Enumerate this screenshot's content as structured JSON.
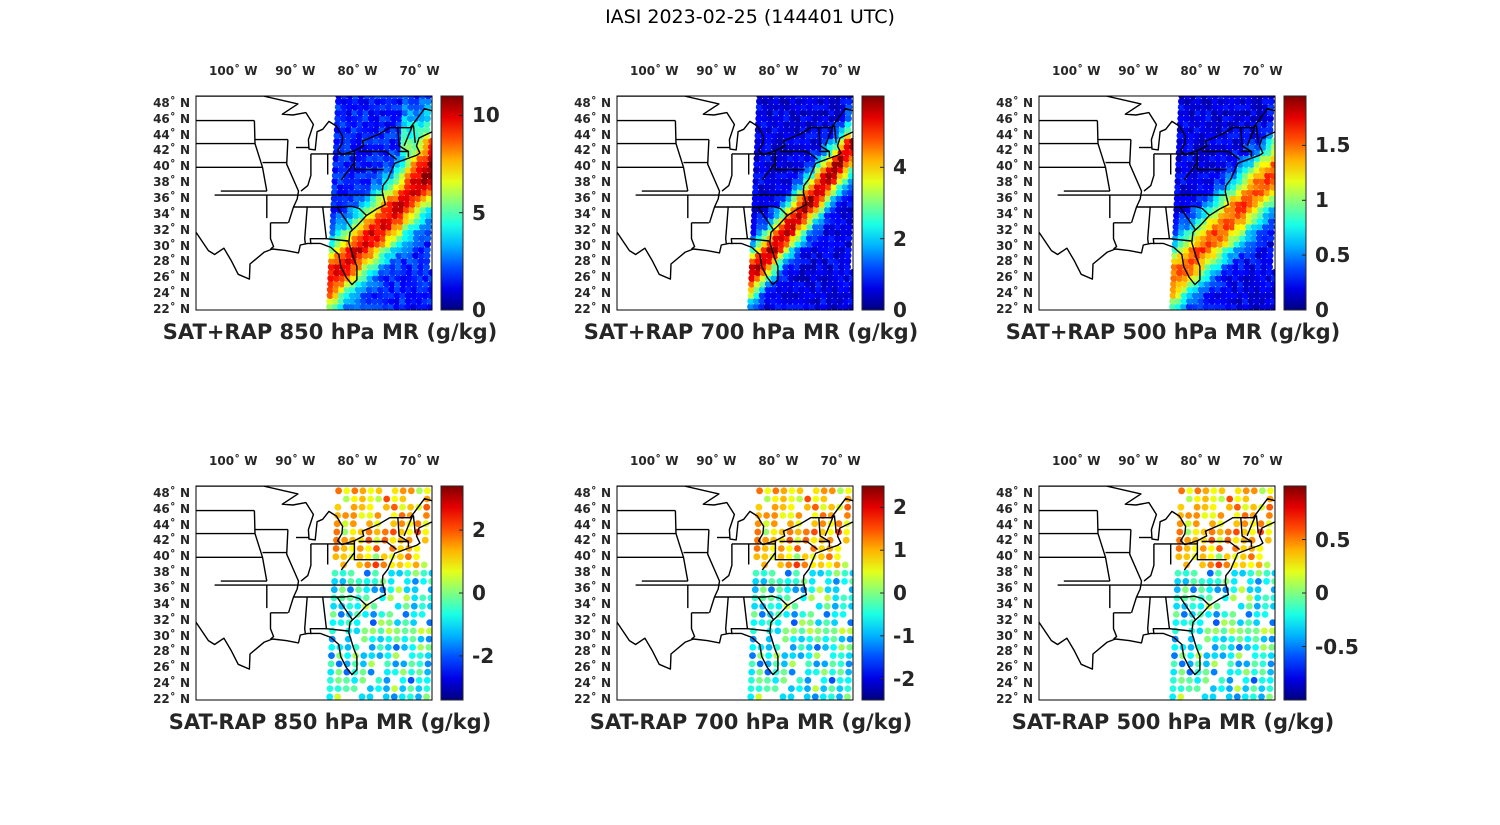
{
  "figure_title": "IASI 2023-02-25 (144401 UTC)",
  "lon_ticks": [
    "100˚ W",
    "90˚ W",
    "80˚ W",
    "70˚ W"
  ],
  "lat_ticks": [
    "48˚ N",
    "46˚ N",
    "44˚ N",
    "42˚ N",
    "40˚ N",
    "38˚ N",
    "36˚ N",
    "34˚ N",
    "32˚ N",
    "30˚ N",
    "28˚ N",
    "26˚ N",
    "24˚ N",
    "22˚ N"
  ],
  "colormap": "jet",
  "chart_data": [
    {
      "type": "heatmap",
      "title": "SAT+RAP 850 hPa MR (g/kg)",
      "lon_range": [
        -106,
        -68
      ],
      "lat_range": [
        22,
        49
      ],
      "color_range": [
        0,
        11
      ],
      "colorbar_ticks": [
        "10",
        "5",
        "0"
      ],
      "colorbar_tick_values": [
        10,
        5,
        0
      ],
      "field": "sum",
      "valid_ticks": [
        "10",
        "5",
        "0"
      ]
    },
    {
      "type": "heatmap",
      "title": "SAT+RAP 700 hPa MR (g/kg)",
      "lon_range": [
        -106,
        -68
      ],
      "lat_range": [
        22,
        49
      ],
      "color_range": [
        0,
        6
      ],
      "colorbar_ticks": [
        "4",
        "2",
        "0"
      ],
      "colorbar_tick_values": [
        4,
        2,
        0
      ],
      "field": "sum"
    },
    {
      "type": "heatmap",
      "title": "SAT+RAP 500 hPa MR (g/kg)",
      "lon_range": [
        -106,
        -68
      ],
      "lat_range": [
        22,
        49
      ],
      "color_range": [
        0,
        1.95
      ],
      "colorbar_ticks": [
        "1.5",
        "1",
        "0.5",
        "0"
      ],
      "colorbar_tick_values": [
        1.5,
        1,
        0.5,
        0
      ],
      "field": "sum"
    },
    {
      "type": "heatmap",
      "title": "SAT-RAP 850 hPa MR (g/kg)",
      "lon_range": [
        -106,
        -68
      ],
      "lat_range": [
        22,
        49
      ],
      "color_range": [
        -3.4,
        3.4
      ],
      "colorbar_ticks": [
        "2",
        "0",
        "-2"
      ],
      "colorbar_tick_values": [
        2,
        0,
        -2
      ],
      "field": "diff"
    },
    {
      "type": "heatmap",
      "title": "SAT-RAP 700 hPa MR (g/kg)",
      "lon_range": [
        -106,
        -68
      ],
      "lat_range": [
        22,
        49
      ],
      "color_range": [
        -2.5,
        2.5
      ],
      "colorbar_ticks": [
        "2",
        "1",
        "0",
        "-1",
        "-2"
      ],
      "colorbar_tick_values": [
        2,
        1,
        0,
        -1,
        -2
      ],
      "field": "diff"
    },
    {
      "type": "heatmap",
      "title": "SAT-RAP 500 hPa MR (g/kg)",
      "lon_range": [
        -106,
        -68
      ],
      "lat_range": [
        22,
        49
      ],
      "color_range": [
        -1,
        1
      ],
      "colorbar_ticks": [
        "0.5",
        "0",
        "-0.5"
      ],
      "colorbar_tick_values": [
        0.5,
        0,
        -0.5
      ],
      "field": "diff"
    }
  ]
}
